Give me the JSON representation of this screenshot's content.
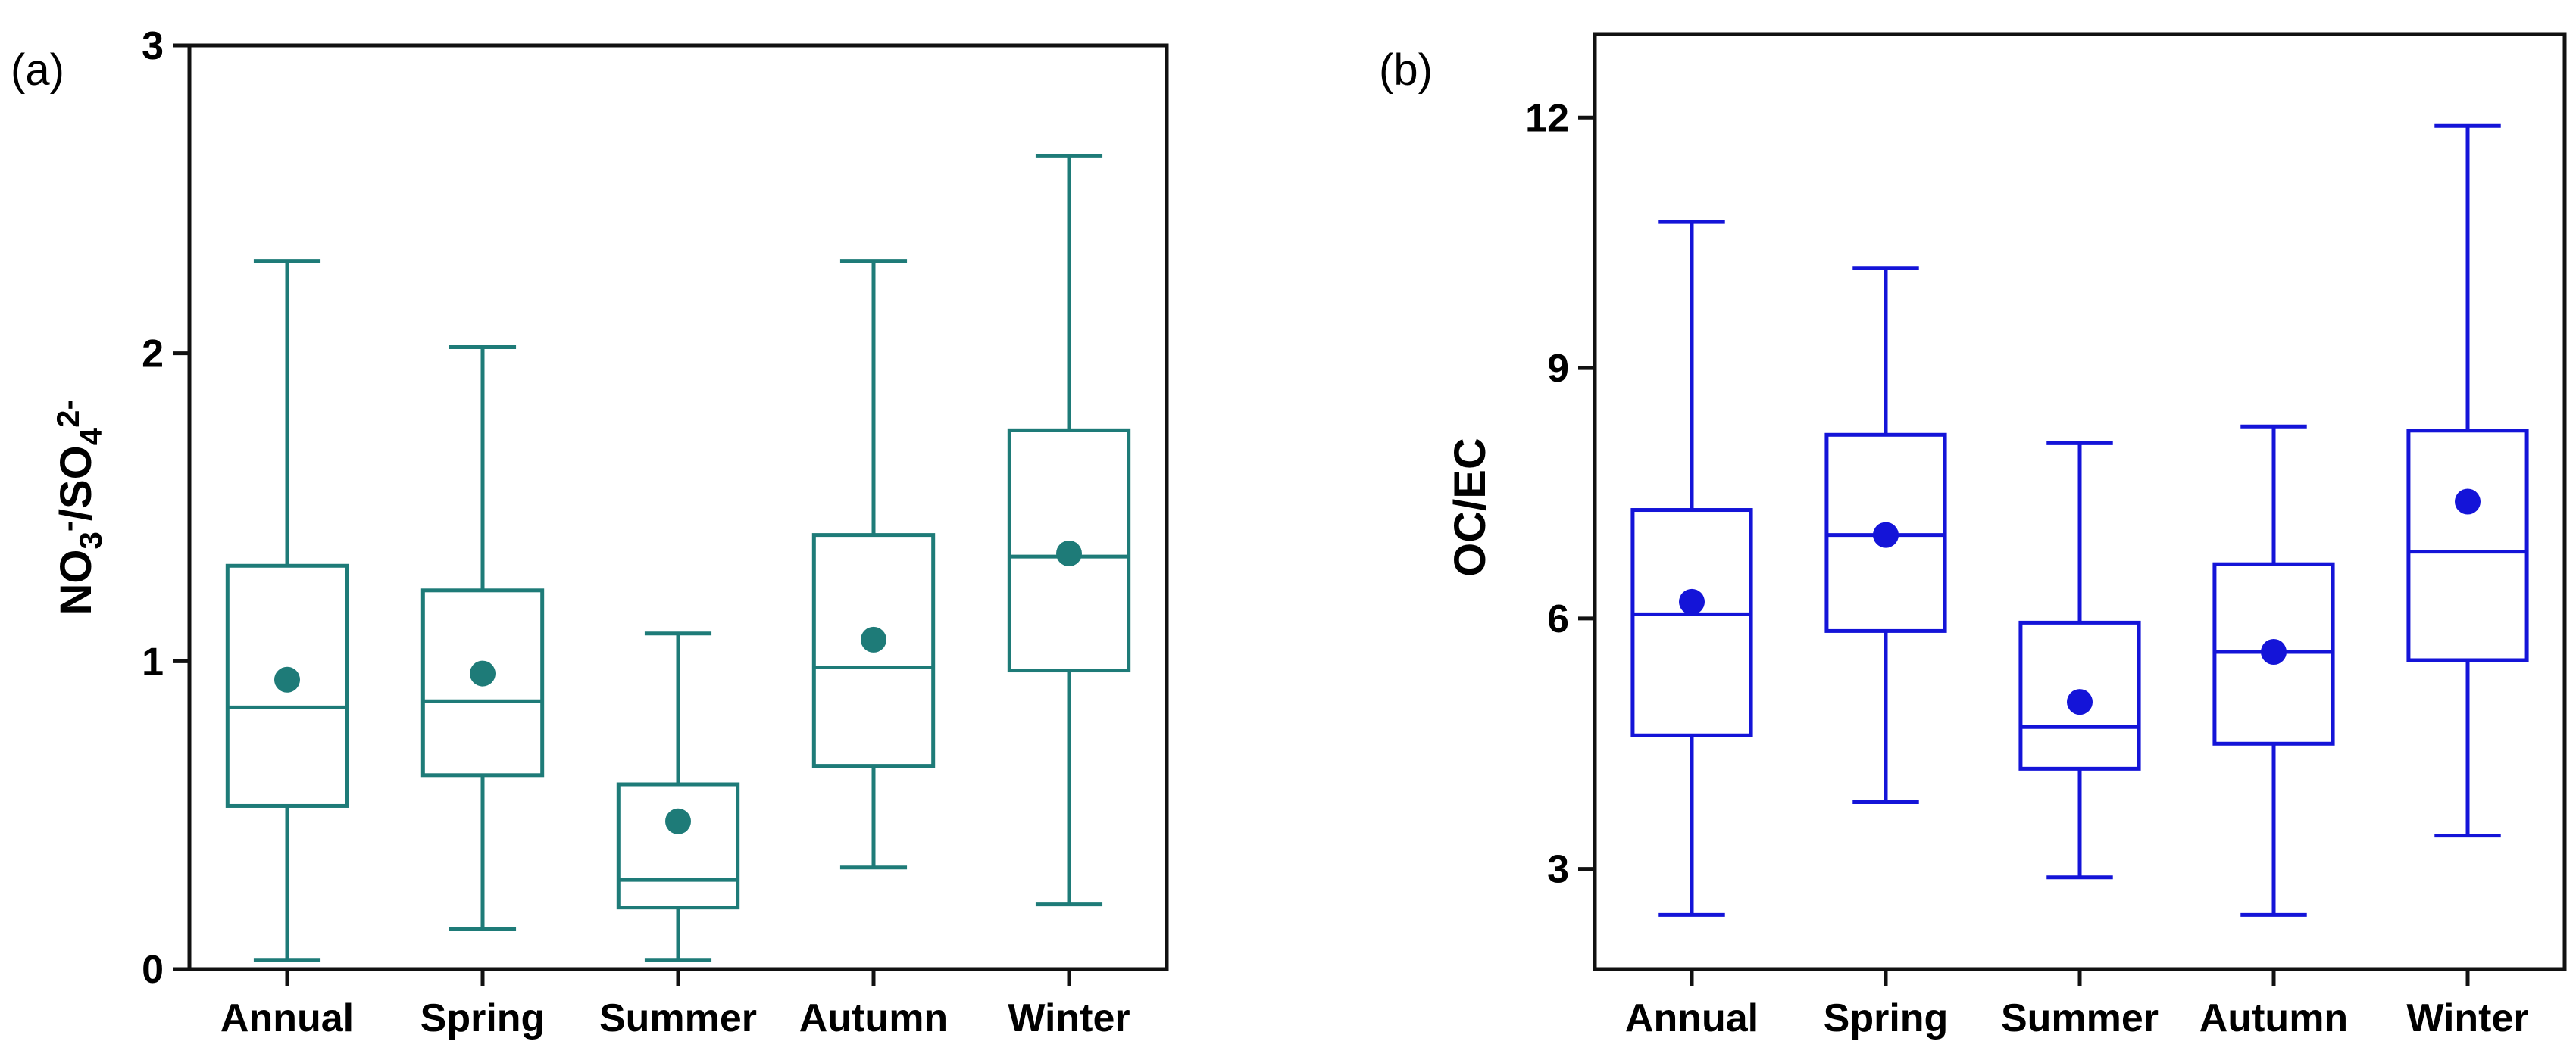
{
  "chart_data": [
    {
      "type": "box",
      "panel_label": "(a)",
      "ylabel": {
        "parts": [
          {
            "text": "NO",
            "style": "normal"
          },
          {
            "text": "3",
            "style": "sub"
          },
          {
            "text": "-",
            "style": "sup"
          },
          {
            "text": "/SO",
            "style": "normal"
          },
          {
            "text": "4",
            "style": "sub"
          },
          {
            "text": "2-",
            "style": "sup"
          }
        ]
      },
      "categories": [
        "Annual",
        "Spring",
        "Summer",
        "Autumn",
        "Winter"
      ],
      "ylim": [
        0,
        3
      ],
      "yticks": [
        0,
        1,
        2,
        3
      ],
      "color": "#1e7b78",
      "grid": false,
      "boxes": [
        {
          "min": 0.03,
          "q1": 0.53,
          "median": 0.85,
          "q3": 1.31,
          "max": 2.3,
          "mean": 0.94
        },
        {
          "min": 0.13,
          "q1": 0.63,
          "median": 0.87,
          "q3": 1.23,
          "max": 2.02,
          "mean": 0.96
        },
        {
          "min": 0.03,
          "q1": 0.2,
          "median": 0.29,
          "q3": 0.6,
          "max": 1.09,
          "mean": 0.48
        },
        {
          "min": 0.33,
          "q1": 0.66,
          "median": 0.98,
          "q3": 1.41,
          "max": 2.3,
          "mean": 1.07
        },
        {
          "min": 0.21,
          "q1": 0.97,
          "median": 1.34,
          "q3": 1.75,
          "max": 2.64,
          "mean": 1.35
        }
      ]
    },
    {
      "type": "box",
      "panel_label": "(b)",
      "ylabel": {
        "parts": [
          {
            "text": "OC/EC",
            "style": "normal"
          }
        ]
      },
      "categories": [
        "Annual",
        "Spring",
        "Summer",
        "Autumn",
        "Winter"
      ],
      "ylim": [
        1.8,
        13.0
      ],
      "yticks": [
        3,
        6,
        9,
        12
      ],
      "color": "#1414d8",
      "grid": false,
      "boxes": [
        {
          "min": 2.45,
          "q1": 4.6,
          "median": 6.05,
          "q3": 7.3,
          "max": 10.75,
          "mean": 6.2
        },
        {
          "min": 3.8,
          "q1": 5.85,
          "median": 7.0,
          "q3": 8.2,
          "max": 10.2,
          "mean": 7.0
        },
        {
          "min": 2.9,
          "q1": 4.2,
          "median": 4.7,
          "q3": 5.95,
          "max": 8.1,
          "mean": 5.0
        },
        {
          "min": 2.45,
          "q1": 4.5,
          "median": 5.6,
          "q3": 6.65,
          "max": 8.3,
          "mean": 5.6
        },
        {
          "min": 3.4,
          "q1": 5.5,
          "median": 6.8,
          "q3": 8.25,
          "max": 11.9,
          "mean": 7.4
        }
      ]
    }
  ]
}
